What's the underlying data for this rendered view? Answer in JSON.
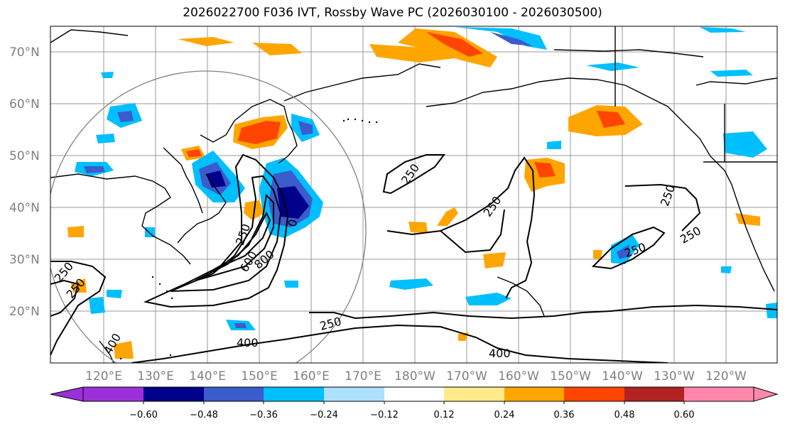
{
  "title": "2026022700 F036 IVT, Rossby Wave PC (2026030100 - 2026030500)",
  "lat_labels": [
    "70°N",
    "60°N",
    "50°N",
    "40°N",
    "30°N",
    "20°N"
  ],
  "lon_labels": [
    "120°E",
    "130°E",
    "140°E",
    "150°E",
    "160°E",
    "170°E",
    "180°W",
    "170°W",
    "160°W",
    "150°W",
    "140°W",
    "130°W",
    "120°W"
  ],
  "contour_labels": [
    "250",
    "250",
    "250",
    "250",
    "250",
    "250",
    "250",
    "250",
    "600",
    "800",
    "0",
    "250",
    "400",
    "400",
    "400"
  ],
  "colorbar": {
    "ticks": [
      "−0.60",
      "−0.48",
      "−0.36",
      "−0.24",
      "−0.12",
      "0.12",
      "0.24",
      "0.36",
      "0.48",
      "0.60"
    ],
    "colors": [
      "#9b30d9",
      "#00008b",
      "#3a5ccc",
      "#00bfff",
      "#aee0ff",
      "#ffffff",
      "#ffeb8a",
      "#ffa500",
      "#ff4500",
      "#b22222",
      "#ff88aa"
    ]
  },
  "colors": {
    "grid": "#9a9a9a",
    "coast": "#000000",
    "circle": "#808080"
  }
}
